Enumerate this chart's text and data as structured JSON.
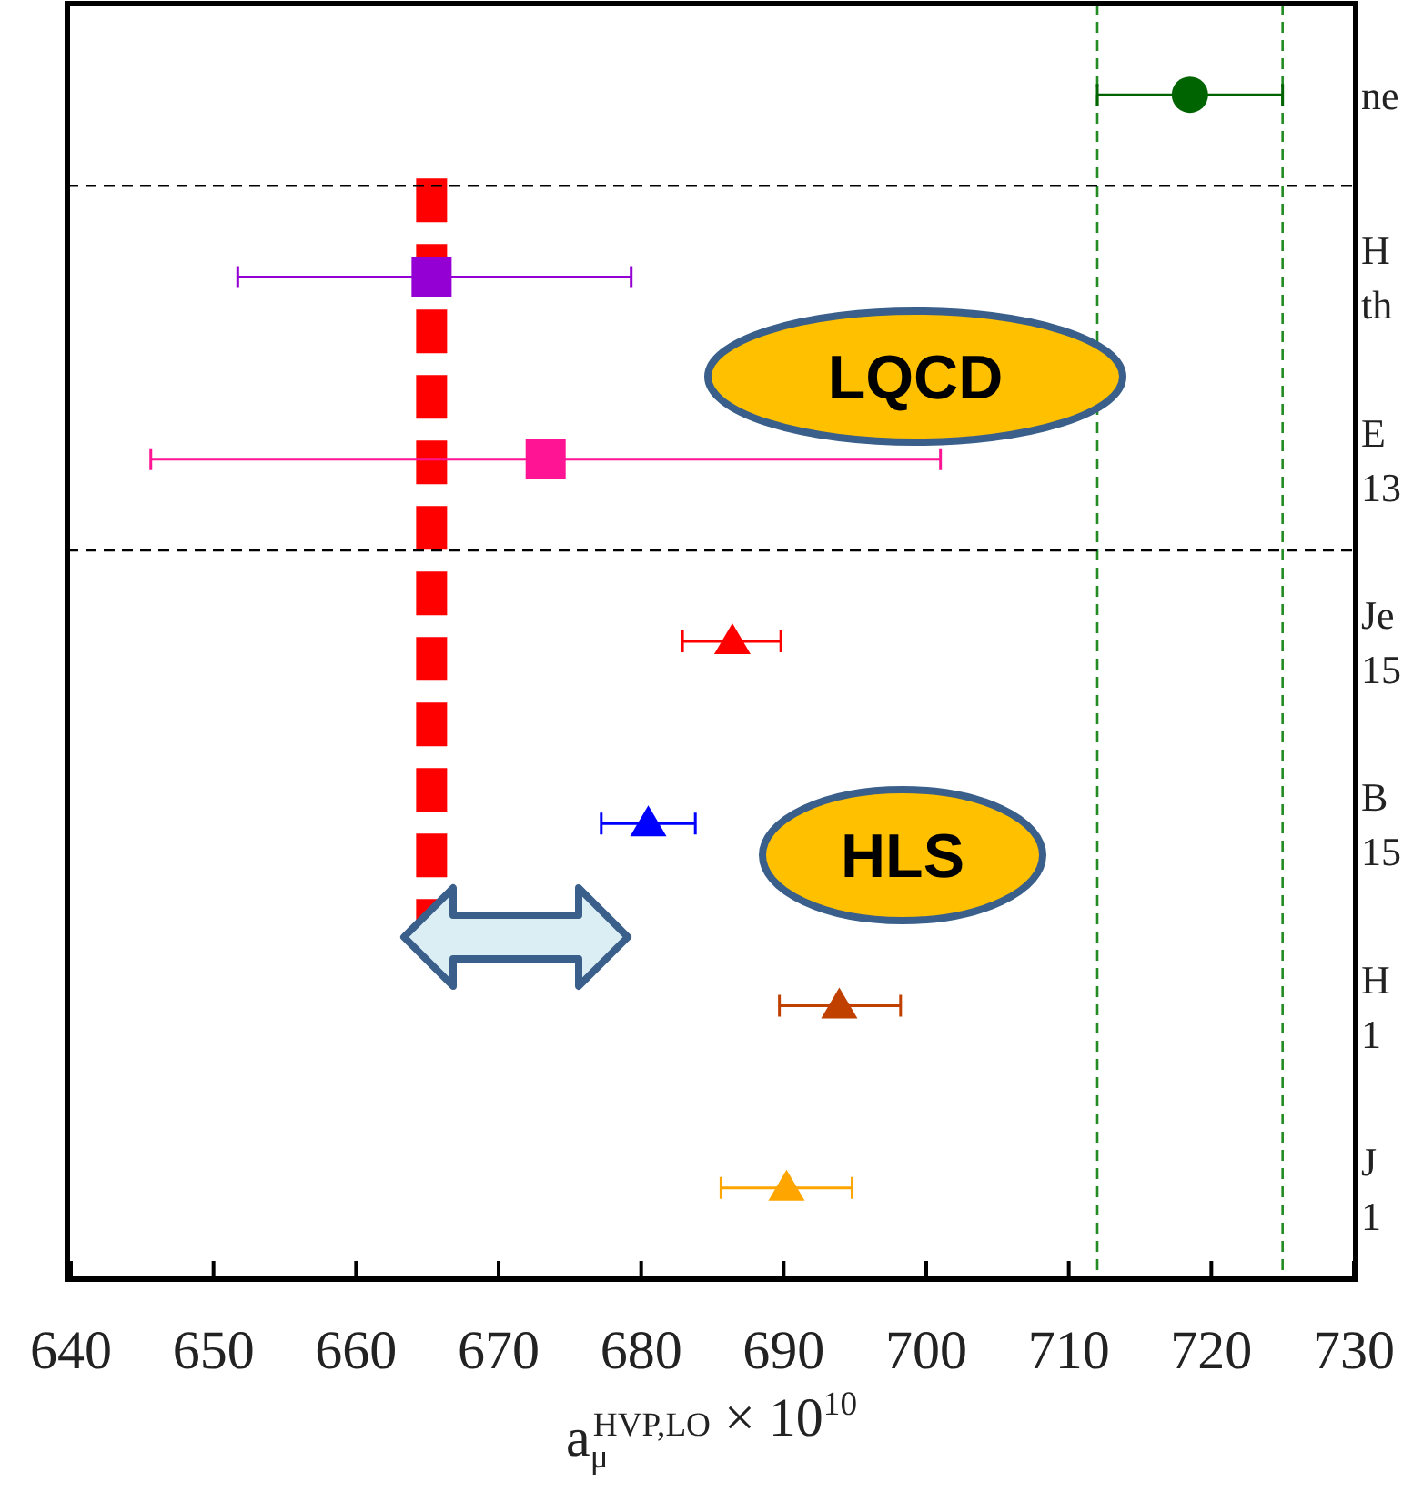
{
  "chart_data": {
    "type": "scatter",
    "orientation": "horizontal",
    "xlabel": "a$_{μ}$$^{HVP,LO}$ × 10$^{10}$",
    "categories": [
      null,
      null,
      null,
      null,
      null,
      null,
      null
    ],
    "xlim": [
      640,
      730
    ],
    "xticks": [
      640,
      650,
      660,
      670,
      680,
      690,
      700,
      710,
      720,
      730
    ],
    "grid": false,
    "series": [
      {
        "color": "#006400",
        "marker": "circle",
        "values": [
          718.5,
          null,
          null,
          null,
          null,
          null,
          null
        ],
        "errors": [
          [
            712,
            725
          ],
          null,
          null,
          null,
          null,
          null,
          null
        ]
      },
      {
        "color": "#9400d3",
        "marker": "square",
        "values": [
          null,
          665.3,
          null,
          null,
          null,
          null,
          null
        ],
        "errors": [
          null,
          [
            651.7,
            679.3
          ],
          null,
          null,
          null,
          null,
          null
        ]
      },
      {
        "color": "#ff1493",
        "marker": "square",
        "values": [
          null,
          null,
          673.3,
          null,
          null,
          null,
          null
        ],
        "errors": [
          null,
          null,
          [
            645.6,
            701
          ],
          null,
          null,
          null,
          null
        ]
      },
      {
        "color": "#ff0000",
        "marker": "triangle",
        "values": [
          null,
          null,
          null,
          686.4,
          null,
          null,
          null
        ],
        "errors": [
          null,
          null,
          null,
          [
            682.9,
            689.8
          ],
          null,
          null,
          null
        ]
      },
      {
        "color": "#0000ff",
        "marker": "triangle",
        "values": [
          null,
          null,
          null,
          null,
          680.5,
          null,
          null
        ],
        "errors": [
          null,
          null,
          null,
          null,
          [
            677.2,
            683.8
          ],
          null,
          null
        ]
      },
      {
        "color": "#c04000",
        "marker": "triangle",
        "values": [
          null,
          null,
          null,
          null,
          null,
          693.9,
          null
        ],
        "errors": [
          null,
          null,
          null,
          null,
          null,
          [
            689.7,
            698.2
          ],
          null
        ]
      },
      {
        "color": "#ffa500",
        "marker": "triangle",
        "values": [
          null,
          null,
          null,
          null,
          null,
          null,
          690.2
        ],
        "errors": [
          null,
          null,
          null,
          null,
          null,
          null,
          [
            685.6,
            694.8
          ]
        ]
      }
    ],
    "ref_lines": [
      {
        "axis": "x",
        "value": 712,
        "color": "#228b22",
        "line_style": "dashed"
      },
      {
        "axis": "x",
        "value": 725,
        "color": "#228b22",
        "line_style": "dashed"
      },
      {
        "axis": "x",
        "value": 665.3,
        "color": "#ff0000",
        "line_style": "dashed"
      }
    ],
    "annotations": [
      "LQCD",
      "HLS",
      "ne",
      "H",
      "th",
      "E",
      "13",
      "Je",
      "15",
      "B",
      "15",
      "H",
      "1",
      "J",
      "1"
    ]
  }
}
